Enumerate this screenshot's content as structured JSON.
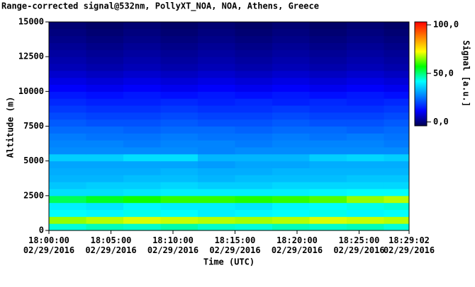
{
  "chart_data": {
    "type": "heatmap",
    "title": "Range-corrected signal@532nm, PollyXT_NOA, NOA, Athens, Greece",
    "xlabel": "Time (UTC)",
    "ylabel": "Altitude (m)",
    "colorbar_label": "Signal [a.u.]",
    "x": [
      0,
      3,
      6,
      9,
      12,
      15,
      18,
      21,
      24,
      27
    ],
    "y": [
      0,
      500,
      1000,
      1500,
      2000,
      2500,
      3000,
      3500,
      4000,
      4500,
      5000,
      5500,
      6000,
      6500,
      7000,
      7500,
      8000,
      8500,
      9000,
      9500,
      10000,
      10500,
      11000,
      11500,
      12000,
      12500,
      13000,
      13500,
      14000,
      14500
    ],
    "xlim": [
      0,
      29.03
    ],
    "ylim": [
      0,
      15000
    ],
    "zlim": [
      -4,
      103
    ],
    "xticks": [
      {
        "value": 0,
        "label": "18:00:00\n02/29/2016"
      },
      {
        "value": 5,
        "label": "18:05:00\n02/29/2016"
      },
      {
        "value": 10,
        "label": "18:10:00\n02/29/2016"
      },
      {
        "value": 15,
        "label": "18:15:00\n02/29/2016"
      },
      {
        "value": 20,
        "label": "18:20:00\n02/29/2016"
      },
      {
        "value": 25,
        "label": "18:25:00\n02/29/2016"
      },
      {
        "value": 29.03,
        "label": "18:29:02\n02/29/2016"
      }
    ],
    "yticks": [
      0,
      2500,
      5000,
      7500,
      10000,
      12500,
      15000
    ],
    "zticks": [
      {
        "value": 0,
        "label": "0,0"
      },
      {
        "value": 50,
        "label": "50,0"
      },
      {
        "value": 100,
        "label": "100,0"
      }
    ],
    "colormap": [
      "#000050",
      "#0000ff",
      "#0080ff",
      "#00ffff",
      "#00ff00",
      "#ffff00",
      "#ff8000",
      "#ff0000"
    ],
    "z": [
      [
        44,
        46,
        45,
        47,
        45,
        44,
        46,
        45,
        46,
        44
      ],
      [
        66,
        68,
        70,
        69,
        68,
        67,
        68,
        70,
        69,
        68
      ],
      [
        42,
        41,
        43,
        42,
        40,
        41,
        42,
        43,
        41,
        42
      ],
      [
        40,
        39,
        41,
        40,
        40,
        39,
        41,
        42,
        43,
        44
      ],
      [
        52,
        55,
        58,
        60,
        60,
        59,
        60,
        62,
        66,
        68
      ],
      [
        38,
        38,
        39,
        40,
        40,
        40,
        40,
        41,
        42,
        42
      ],
      [
        35,
        36,
        36,
        37,
        36,
        36,
        37,
        37,
        37,
        37
      ],
      [
        33,
        33,
        34,
        34,
        33,
        34,
        34,
        34,
        35,
        35
      ],
      [
        32,
        32,
        32,
        33,
        32,
        32,
        33,
        33,
        33,
        33
      ],
      [
        31,
        31,
        31,
        31,
        30,
        31,
        31,
        32,
        32,
        32
      ],
      [
        36,
        36,
        38,
        38,
        33,
        33,
        33,
        36,
        37,
        36
      ],
      [
        28,
        28,
        28,
        28,
        27,
        28,
        28,
        28,
        28,
        28
      ],
      [
        27,
        27,
        26,
        27,
        27,
        26,
        27,
        27,
        27,
        26
      ],
      [
        26,
        25,
        25,
        26,
        25,
        25,
        26,
        25,
        26,
        25
      ],
      [
        24,
        24,
        23,
        24,
        24,
        23,
        24,
        24,
        23,
        24
      ],
      [
        22,
        21,
        21,
        22,
        21,
        21,
        22,
        21,
        21,
        22
      ],
      [
        20,
        19,
        19,
        20,
        19,
        19,
        20,
        19,
        19,
        20
      ],
      [
        18,
        17,
        17,
        18,
        17,
        17,
        18,
        17,
        17,
        18
      ],
      [
        16,
        15,
        15,
        16,
        15,
        16,
        15,
        16,
        15,
        16
      ],
      [
        14,
        13,
        14,
        13,
        14,
        13,
        14,
        13,
        14,
        13
      ],
      [
        11,
        10,
        11,
        10,
        11,
        10,
        11,
        10,
        11,
        10
      ],
      [
        9,
        8,
        9,
        8,
        9,
        8,
        9,
        8,
        9,
        8
      ],
      [
        7,
        6,
        7,
        6,
        7,
        6,
        7,
        6,
        7,
        6
      ],
      [
        5,
        4,
        5,
        4,
        5,
        4,
        5,
        4,
        5,
        4
      ],
      [
        4,
        3,
        4,
        3,
        4,
        3,
        4,
        3,
        4,
        3
      ],
      [
        3,
        2,
        3,
        2,
        3,
        2,
        3,
        2,
        3,
        2
      ],
      [
        2,
        1,
        2,
        1,
        2,
        1,
        2,
        1,
        2,
        1
      ],
      [
        1,
        0,
        1,
        0,
        1,
        0,
        1,
        0,
        1,
        0
      ],
      [
        0,
        -1,
        0,
        -1,
        0,
        -1,
        0,
        -1,
        0,
        -1
      ],
      [
        -1,
        -2,
        -1,
        -2,
        -1,
        -2,
        -1,
        -2,
        -1,
        -2
      ]
    ]
  }
}
